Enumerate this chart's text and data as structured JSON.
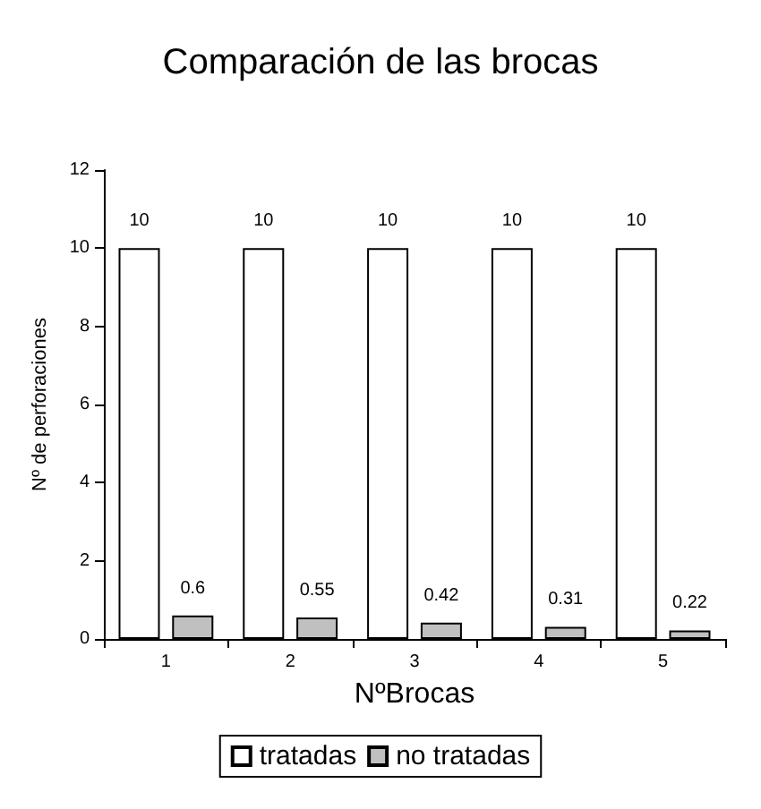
{
  "chart_data": {
    "type": "bar",
    "title": "Comparación de las brocas",
    "xlabel": "NºBrocas",
    "ylabel": "Nº de perforaciones",
    "categories": [
      "1",
      "2",
      "3",
      "4",
      "5"
    ],
    "series": [
      {
        "name": "tratadas",
        "color": "#ffffff",
        "values": [
          10,
          10,
          10,
          10,
          10
        ]
      },
      {
        "name": "no tratadas",
        "color": "#c0c0c0",
        "values": [
          0.6,
          0.55,
          0.42,
          0.31,
          0.22
        ]
      }
    ],
    "ylim": [
      0,
      12
    ],
    "yticks": [
      0,
      2,
      4,
      6,
      8,
      10,
      12
    ],
    "grid": false,
    "legend": "bottom",
    "data_labels": true
  }
}
